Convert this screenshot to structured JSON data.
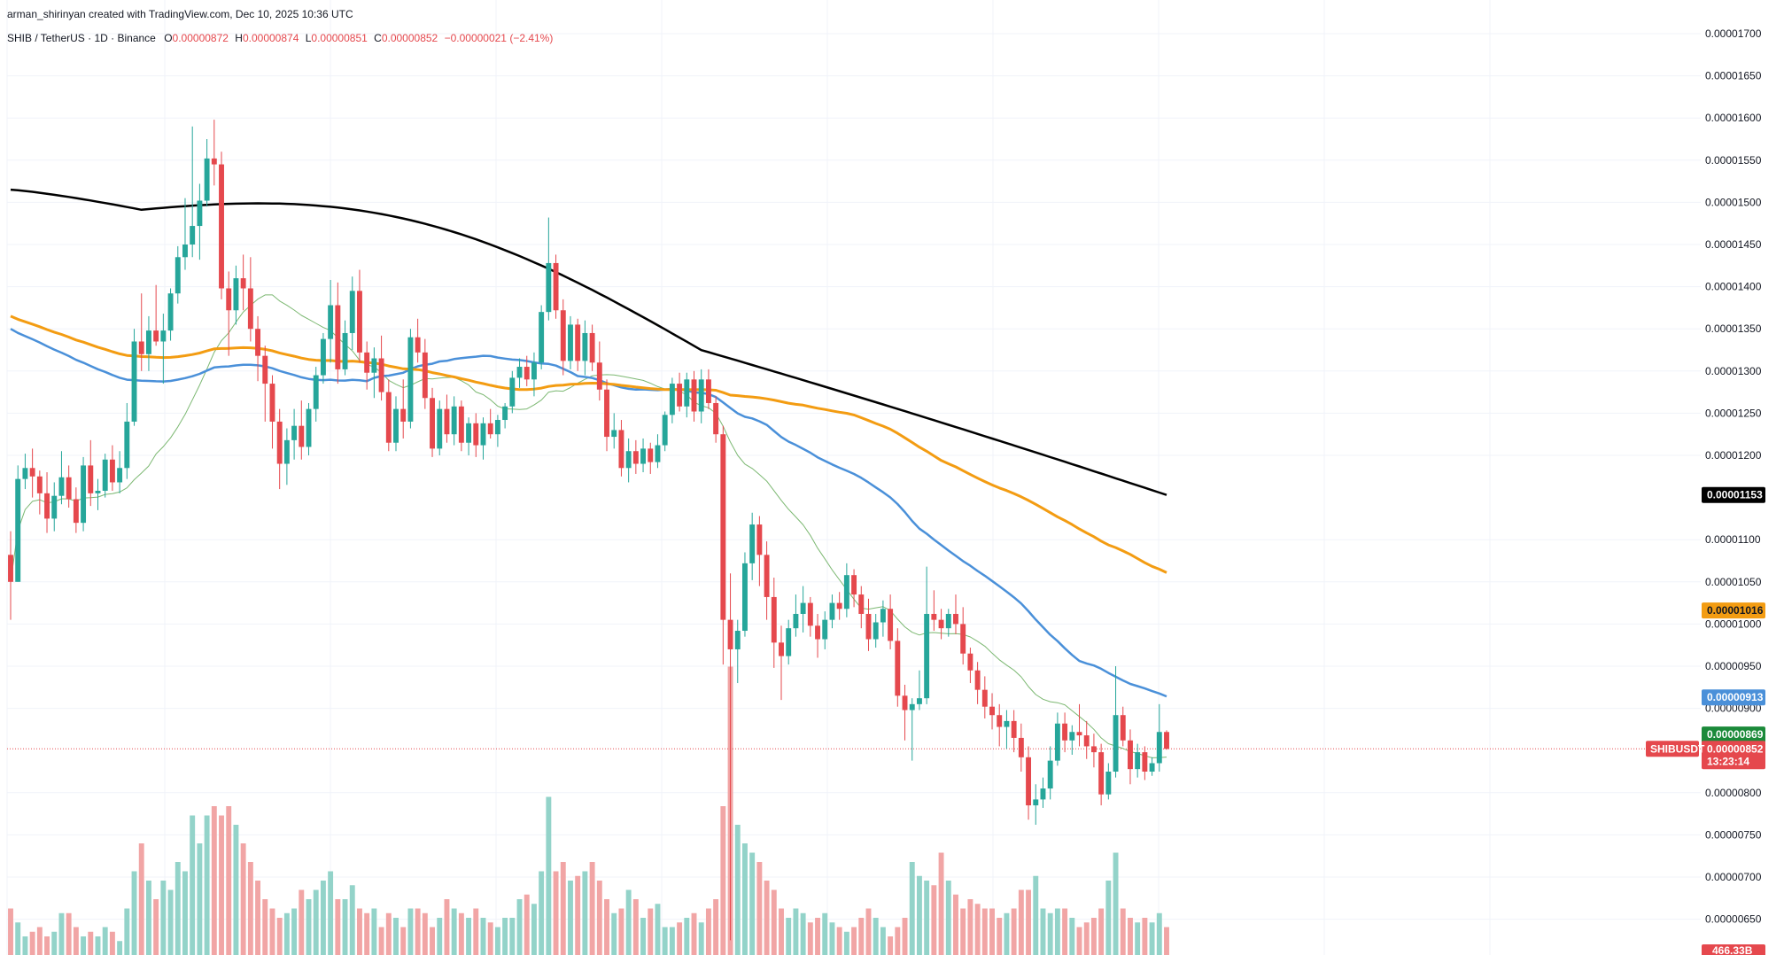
{
  "header": {
    "credit": "arman_shirinyan created with TradingView.com, Dec 10, 2025 10:36 UTC",
    "symbol": "SHIB / TetherUS · 1D · Binance",
    "open_label": "O",
    "open": "0.00000872",
    "high_label": "H",
    "high": "0.00000874",
    "low_label": "L",
    "low": "0.00000851",
    "close_label": "C",
    "close": "0.00000852",
    "change": "−0.00000021 (−2.41%)"
  },
  "price_axis": {
    "ticks": [
      "0.00001700",
      "0.00001650",
      "0.00001600",
      "0.00001550",
      "0.00001500",
      "0.00001450",
      "0.00001400",
      "0.00001350",
      "0.00001300",
      "0.00001250",
      "0.00001200",
      "0.00001100",
      "0.00001050",
      "0.00001000",
      "0.00000950",
      "0.00000900",
      "0.00000800",
      "0.00000750",
      "0.00000700",
      "0.00000650"
    ]
  },
  "badges": {
    "ma200": "0.00001153",
    "ma100": "0.00001016",
    "ma50": "0.00000913",
    "ma20": "0.00000869",
    "symbol_tag": "SHIBUSDT",
    "last_price": "0.00000852",
    "countdown": "13:23:14",
    "volume": "466.33B"
  },
  "colors": {
    "up": "#26a69a",
    "down": "#e5484d",
    "vol_up": "#93d3c9",
    "vol_down": "#f1a5a5",
    "ma200": "#000000",
    "ma100": "#f39c12",
    "ma50": "#4a90d9",
    "ma20": "#7cb872",
    "grid": "#f0f3fa",
    "text": "#131722"
  },
  "chart_data": {
    "type": "candlestick",
    "symbol": "SHIB / TetherUS",
    "timeframe": "1D",
    "exchange": "Binance",
    "ylim": [
      6.2e-06,
      1.71e-05
    ],
    "grid": true,
    "candles": [
      [
        1.082e-05,
        1.11e-05,
        1.005e-05,
        1.05e-05
      ],
      [
        1.05e-05,
        1.188e-05,
        1.05e-05,
        1.172e-05
      ],
      [
        1.172e-05,
        1.202e-05,
        1.16e-05,
        1.185e-05
      ],
      [
        1.185e-05,
        1.208e-05,
        1.15e-05,
        1.175e-05
      ],
      [
        1.175e-05,
        1.182e-05,
        1.13e-05,
        1.155e-05
      ],
      [
        1.155e-05,
        1.18e-05,
        1.108e-05,
        1.125e-05
      ],
      [
        1.125e-05,
        1.168e-05,
        1.11e-05,
        1.152e-05
      ],
      [
        1.152e-05,
        1.205e-05,
        1.142e-05,
        1.174e-05
      ],
      [
        1.174e-05,
        1.188e-05,
        1.138e-05,
        1.148e-05
      ],
      [
        1.148e-05,
        1.162e-05,
        1.108e-05,
        1.12e-05
      ],
      [
        1.12e-05,
        1.198e-05,
        1.11e-05,
        1.188e-05
      ],
      [
        1.188e-05,
        1.218e-05,
        1.14e-05,
        1.155e-05
      ],
      [
        1.155e-05,
        1.172e-05,
        1.135e-05,
        1.158e-05
      ],
      [
        1.158e-05,
        1.202e-05,
        1.15e-05,
        1.195e-05
      ],
      [
        1.195e-05,
        1.212e-05,
        1.158e-05,
        1.168e-05
      ],
      [
        1.168e-05,
        1.205e-05,
        1.155e-05,
        1.185e-05
      ],
      [
        1.185e-05,
        1.262e-05,
        1.172e-05,
        1.24e-05
      ],
      [
        1.24e-05,
        1.35e-05,
        1.235e-05,
        1.335e-05
      ],
      [
        1.335e-05,
        1.392e-05,
        1.3e-05,
        1.32e-05
      ],
      [
        1.32e-05,
        1.365e-05,
        1.3e-05,
        1.348e-05
      ],
      [
        1.348e-05,
        1.402e-05,
        1.33e-05,
        1.335e-05
      ],
      [
        1.335e-05,
        1.368e-05,
        1.285e-05,
        1.348e-05
      ],
      [
        1.348e-05,
        1.398e-05,
        1.336e-05,
        1.392e-05
      ],
      [
        1.392e-05,
        1.448e-05,
        1.38e-05,
        1.435e-05
      ],
      [
        1.435e-05,
        1.505e-05,
        1.42e-05,
        1.45e-05
      ],
      [
        1.45e-05,
        1.59e-05,
        1.435e-05,
        1.472e-05
      ],
      [
        1.472e-05,
        1.522e-05,
        1.432e-05,
        1.502e-05
      ],
      [
        1.502e-05,
        1.575e-05,
        1.495e-05,
        1.552e-05
      ],
      [
        1.552e-05,
        1.598e-05,
        1.52e-05,
        1.545e-05
      ],
      [
        1.545e-05,
        1.56e-05,
        1.385e-05,
        1.398e-05
      ],
      [
        1.398e-05,
        1.418e-05,
        1.318e-05,
        1.372e-05
      ],
      [
        1.372e-05,
        1.425e-05,
        1.355e-05,
        1.41e-05
      ],
      [
        1.41e-05,
        1.438e-05,
        1.372e-05,
        1.398e-05
      ],
      [
        1.398e-05,
        1.435e-05,
        1.335e-05,
        1.35e-05
      ],
      [
        1.35e-05,
        1.365e-05,
        1.288e-05,
        1.318e-05
      ],
      [
        1.318e-05,
        1.33e-05,
        1.24e-05,
        1.285e-05
      ],
      [
        1.285e-05,
        1.295e-05,
        1.208e-05,
        1.24e-05
      ],
      [
        1.24e-05,
        1.255e-05,
        1.16e-05,
        1.19e-05
      ],
      [
        1.19e-05,
        1.232e-05,
        1.165e-05,
        1.218e-05
      ],
      [
        1.218e-05,
        1.255e-05,
        1.195e-05,
        1.235e-05
      ],
      [
        1.235e-05,
        1.265e-05,
        1.195e-05,
        1.21e-05
      ],
      [
        1.21e-05,
        1.262e-05,
        1.2e-05,
        1.255e-05
      ],
      [
        1.255e-05,
        1.305e-05,
        1.24e-05,
        1.295e-05
      ],
      [
        1.295e-05,
        1.345e-05,
        1.285e-05,
        1.338e-05
      ],
      [
        1.338e-05,
        1.408e-05,
        1.31e-05,
        1.378e-05
      ],
      [
        1.378e-05,
        1.405e-05,
        1.285e-05,
        1.302e-05
      ],
      [
        1.302e-05,
        1.36e-05,
        1.295e-05,
        1.345e-05
      ],
      [
        1.345e-05,
        1.412e-05,
        1.325e-05,
        1.395e-05
      ],
      [
        1.395e-05,
        1.42e-05,
        1.31e-05,
        1.322e-05
      ],
      [
        1.322e-05,
        1.335e-05,
        1.278e-05,
        1.298e-05
      ],
      [
        1.298e-05,
        1.328e-05,
        1.268e-05,
        1.315e-05
      ],
      [
        1.315e-05,
        1.342e-05,
        1.265e-05,
        1.275e-05
      ],
      [
        1.275e-05,
        1.29e-05,
        1.205e-05,
        1.215e-05
      ],
      [
        1.215e-05,
        1.27e-05,
        1.205e-05,
        1.255e-05
      ],
      [
        1.255e-05,
        1.29e-05,
        1.22e-05,
        1.24e-05
      ],
      [
        1.24e-05,
        1.35e-05,
        1.232e-05,
        1.34e-05
      ],
      [
        1.34e-05,
        1.362e-05,
        1.31e-05,
        1.322e-05
      ],
      [
        1.322e-05,
        1.338e-05,
        1.255e-05,
        1.268e-05
      ],
      [
        1.268e-05,
        1.28e-05,
        1.198e-05,
        1.208e-05
      ],
      [
        1.208e-05,
        1.265e-05,
        1.2e-05,
        1.255e-05
      ],
      [
        1.255e-05,
        1.272e-05,
        1.215e-05,
        1.225e-05
      ],
      [
        1.225e-05,
        1.27e-05,
        1.212e-05,
        1.258e-05
      ],
      [
        1.258e-05,
        1.265e-05,
        1.205e-05,
        1.215e-05
      ],
      [
        1.215e-05,
        1.245e-05,
        1.2e-05,
        1.238e-05
      ],
      [
        1.238e-05,
        1.25e-05,
        1.198e-05,
        1.212e-05
      ],
      [
        1.212e-05,
        1.245e-05,
        1.195e-05,
        1.238e-05
      ],
      [
        1.238e-05,
        1.255e-05,
        1.22e-05,
        1.225e-05
      ],
      [
        1.225e-05,
        1.248e-05,
        1.21e-05,
        1.242e-05
      ],
      [
        1.242e-05,
        1.262e-05,
        1.232e-05,
        1.258e-05
      ],
      [
        1.258e-05,
        1.3e-05,
        1.25e-05,
        1.292e-05
      ],
      [
        1.292e-05,
        1.315e-05,
        1.28e-05,
        1.305e-05
      ],
      [
        1.305e-05,
        1.318e-05,
        1.282e-05,
        1.29e-05
      ],
      [
        1.29e-05,
        1.322e-05,
        1.27e-05,
        1.31e-05
      ],
      [
        1.31e-05,
        1.378e-05,
        1.302e-05,
        1.37e-05
      ],
      [
        1.37e-05,
        1.482e-05,
        1.36e-05,
        1.428e-05
      ],
      [
        1.428e-05,
        1.438e-05,
        1.362e-05,
        1.372e-05
      ],
      [
        1.372e-05,
        1.385e-05,
        1.295e-05,
        1.312e-05
      ],
      [
        1.312e-05,
        1.365e-05,
        1.302e-05,
        1.355e-05
      ],
      [
        1.355e-05,
        1.362e-05,
        1.3e-05,
        1.312e-05
      ],
      [
        1.312e-05,
        1.36e-05,
        1.295e-05,
        1.345e-05
      ],
      [
        1.345e-05,
        1.355e-05,
        1.3e-05,
        1.31e-05
      ],
      [
        1.31e-05,
        1.335e-05,
        1.265e-05,
        1.278e-05
      ],
      [
        1.278e-05,
        1.29e-05,
        1.205e-05,
        1.222e-05
      ],
      [
        1.222e-05,
        1.25e-05,
        1.208e-05,
        1.23e-05
      ],
      [
        1.23e-05,
        1.242e-05,
        1.175e-05,
        1.185e-05
      ],
      [
        1.185e-05,
        1.22e-05,
        1.168e-05,
        1.205e-05
      ],
      [
        1.205e-05,
        1.218e-05,
        1.178e-05,
        1.19e-05
      ],
      [
        1.19e-05,
        1.22e-05,
        1.18e-05,
        1.208e-05
      ],
      [
        1.208e-05,
        1.215e-05,
        1.178e-05,
        1.192e-05
      ],
      [
        1.192e-05,
        1.225e-05,
        1.185e-05,
        1.212e-05
      ],
      [
        1.212e-05,
        1.252e-05,
        1.205e-05,
        1.248e-05
      ],
      [
        1.248e-05,
        1.292e-05,
        1.238e-05,
        1.285e-05
      ],
      [
        1.285e-05,
        1.298e-05,
        1.252e-05,
        1.258e-05
      ],
      [
        1.258e-05,
        1.298e-05,
        1.245e-05,
        1.29e-05
      ],
      [
        1.29e-05,
        1.3e-05,
        1.24e-05,
        1.252e-05
      ],
      [
        1.252e-05,
        1.302e-05,
        1.238e-05,
        1.29e-05
      ],
      [
        1.29e-05,
        1.302e-05,
        1.255e-05,
        1.262e-05
      ],
      [
        1.262e-05,
        1.27e-05,
        1.215e-05,
        1.225e-05
      ],
      [
        1.225e-05,
        1.235e-05,
        9.52e-06,
        1.005e-05
      ],
      [
        1.005e-05,
        1.06e-05,
        6.25e-06,
        9.7e-06
      ],
      [
        9.7e-06,
        1.005e-05,
        9.3e-06,
        9.92e-06
      ],
      [
        9.92e-06,
        1.085e-05,
        9.85e-06,
        1.072e-05
      ],
      [
        1.072e-05,
        1.132e-05,
        1.052e-05,
        1.118e-05
      ],
      [
        1.118e-05,
        1.128e-05,
        1.045e-05,
        1.082e-05
      ],
      [
        1.082e-05,
        1.098e-05,
        1.005e-05,
        1.032e-05
      ],
      [
        1.032e-05,
        1.055e-05,
        9.48e-06,
        9.78e-06
      ],
      [
        9.78e-06,
        9.98e-06,
        9.1e-06,
        9.62e-06
      ],
      [
        9.62e-06,
        1.005e-05,
        9.52e-06,
        9.95e-06
      ],
      [
        9.95e-06,
        1.035e-05,
        9.85e-06,
        1.012e-05
      ],
      [
        1.012e-05,
        1.045e-05,
        9.9e-06,
        1.025e-05
      ],
      [
        1.025e-05,
        1.032e-05,
        9.85e-06,
        9.98e-06
      ],
      [
        9.98e-06,
        1.012e-05,
        9.6e-06,
        9.82e-06
      ],
      [
        9.82e-06,
        1.015e-05,
        9.7e-06,
        1.005e-05
      ],
      [
        1.005e-05,
        1.035e-05,
        9.95e-06,
        1.025e-05
      ],
      [
        1.025e-05,
        1.038e-05,
        1.005e-05,
        1.018e-05
      ],
      [
        1.018e-05,
        1.072e-05,
        1.008e-05,
        1.058e-05
      ],
      [
        1.058e-05,
        1.065e-05,
        1.02e-05,
        1.035e-05
      ],
      [
        1.035e-05,
        1.045e-05,
        9.95e-06,
        1.012e-05
      ],
      [
        1.012e-05,
        1.03e-05,
        9.68e-06,
        9.82e-06
      ],
      [
        9.82e-06,
        1.012e-05,
        9.72e-06,
        1.002e-05
      ],
      [
        1.002e-05,
        1.028e-05,
        9.85e-06,
        1.018e-05
      ],
      [
        1.018e-05,
        1.035e-05,
        9.7e-06,
        9.8e-06
      ],
      [
        9.8e-06,
        9.95e-06,
        9.02e-06,
        9.15e-06
      ],
      [
        9.15e-06,
        9.28e-06,
        8.62e-06,
        8.98e-06
      ],
      [
        8.98e-06,
        9.12e-06,
        8.38e-06,
        9.05e-06
      ],
      [
        9.05e-06,
        9.45e-06,
        8.98e-06,
        9.12e-06
      ],
      [
        9.12e-06,
        1.068e-05,
        9.05e-06,
        1.012e-05
      ],
      [
        1.012e-05,
        1.04e-05,
        9.92e-06,
        1.005e-05
      ],
      [
        1.005e-05,
        1.018e-05,
        9.82e-06,
        9.95e-06
      ],
      [
        9.95e-06,
        1.018e-05,
        9.85e-06,
        1.012e-05
      ],
      [
        1.012e-05,
        1.035e-05,
        9.88e-06,
        1e-05
      ],
      [
        1e-05,
        1.02e-05,
        9.52e-06,
        9.65e-06
      ],
      [
        9.65e-06,
        9.72e-06,
        9.3e-06,
        9.45e-06
      ],
      [
        9.45e-06,
        9.55e-06,
        9.05e-06,
        9.22e-06
      ],
      [
        9.22e-06,
        9.38e-06,
        8.88e-06,
        9.02e-06
      ],
      [
        9.02e-06,
        9.18e-06,
        8.75e-06,
        8.92e-06
      ],
      [
        8.92e-06,
        9.05e-06,
        8.55e-06,
        8.78e-06
      ],
      [
        8.78e-06,
        8.98e-06,
        8.52e-06,
        8.85e-06
      ],
      [
        8.85e-06,
        8.98e-06,
        8.48e-06,
        8.65e-06
      ],
      [
        8.65e-06,
        8.82e-06,
        8.25e-06,
        8.42e-06
      ],
      [
        8.42e-06,
        8.55e-06,
        7.68e-06,
        7.85e-06
      ],
      [
        7.85e-06,
        8.1e-06,
        7.62e-06,
        7.92e-06
      ],
      [
        7.92e-06,
        8.18e-06,
        7.82e-06,
        8.05e-06
      ],
      [
        8.05e-06,
        8.55e-06,
        7.92e-06,
        8.38e-06
      ],
      [
        8.38e-06,
        8.95e-06,
        8.32e-06,
        8.82e-06
      ],
      [
        8.82e-06,
        8.95e-06,
        8.48e-06,
        8.62e-06
      ],
      [
        8.62e-06,
        8.8e-06,
        8.45e-06,
        8.72e-06
      ],
      [
        8.72e-06,
        9.05e-06,
        8.55e-06,
        8.68e-06
      ],
      [
        8.68e-06,
        8.85e-06,
        8.4e-06,
        8.55e-06
      ],
      [
        8.55e-06,
        8.7e-06,
        8.3e-06,
        8.48e-06
      ],
      [
        8.48e-06,
        8.58e-06,
        7.85e-06,
        7.98e-06
      ],
      [
        7.98e-06,
        8.35e-06,
        7.92e-06,
        8.25e-06
      ],
      [
        8.25e-06,
        9.5e-06,
        8.18e-06,
        8.92e-06
      ],
      [
        8.92e-06,
        9.02e-06,
        8.55e-06,
        8.62e-06
      ],
      [
        8.62e-06,
        8.75e-06,
        8.1e-06,
        8.28e-06
      ],
      [
        8.28e-06,
        8.58e-06,
        8.18e-06,
        8.48e-06
      ],
      [
        8.48e-06,
        8.55e-06,
        8.15e-06,
        8.25e-06
      ],
      [
        8.25e-06,
        8.42e-06,
        8.2e-06,
        8.35e-06
      ],
      [
        8.35e-06,
        9.05e-06,
        8.25e-06,
        8.72e-06
      ],
      [
        8.72e-06,
        8.74e-06,
        8.51e-06,
        8.52e-06
      ]
    ],
    "volume": [
      0.05,
      0.035,
      0.02,
      0.025,
      0.03,
      0.02,
      0.025,
      0.045,
      0.045,
      0.03,
      0.02,
      0.025,
      0.02,
      0.03,
      0.025,
      0.015,
      0.05,
      0.09,
      0.12,
      0.08,
      0.06,
      0.08,
      0.07,
      0.1,
      0.09,
      0.15,
      0.12,
      0.15,
      0.16,
      0.15,
      0.16,
      0.14,
      0.12,
      0.1,
      0.08,
      0.06,
      0.05,
      0.04,
      0.045,
      0.05,
      0.07,
      0.06,
      0.07,
      0.08,
      0.09,
      0.06,
      0.06,
      0.075,
      0.05,
      0.045,
      0.05,
      0.03,
      0.045,
      0.04,
      0.03,
      0.05,
      0.05,
      0.045,
      0.03,
      0.04,
      0.06,
      0.05,
      0.045,
      0.04,
      0.05,
      0.04,
      0.035,
      0.03,
      0.04,
      0.04,
      0.06,
      0.065,
      0.055,
      0.09,
      0.17,
      0.09,
      0.1,
      0.08,
      0.085,
      0.09,
      0.1,
      0.08,
      0.06,
      0.045,
      0.05,
      0.07,
      0.06,
      0.04,
      0.05,
      0.055,
      0.03,
      0.03,
      0.035,
      0.04,
      0.045,
      0.035,
      0.05,
      0.06,
      0.16,
      0.31,
      0.14,
      0.12,
      0.11,
      0.1,
      0.08,
      0.07,
      0.05,
      0.04,
      0.05,
      0.045,
      0.035,
      0.04,
      0.045,
      0.035,
      0.03,
      0.025,
      0.03,
      0.04,
      0.05,
      0.04,
      0.03,
      0.02,
      0.03,
      0.04,
      0.1,
      0.085,
      0.08,
      0.075,
      0.11,
      0.08,
      0.065,
      0.05,
      0.06,
      0.055,
      0.05,
      0.05,
      0.04,
      0.045,
      0.05,
      0.07,
      0.07,
      0.085,
      0.05,
      0.045,
      0.05,
      0.05,
      0.04,
      0.03,
      0.035,
      0.04,
      0.05,
      0.08,
      0.11,
      0.05,
      0.04,
      0.035,
      0.04,
      0.035,
      0.045,
      0.03
    ]
  }
}
